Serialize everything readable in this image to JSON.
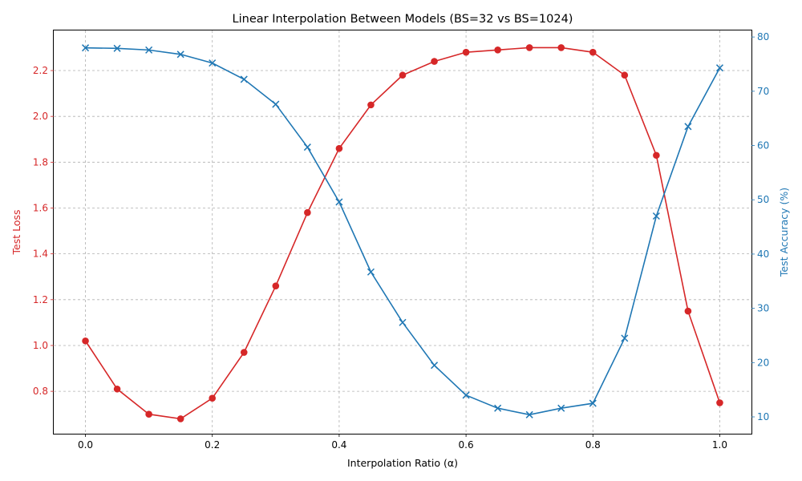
{
  "chart_data": {
    "type": "line",
    "title": "Linear Interpolation Between Models (BS=32 vs BS=1024)",
    "xlabel": "Interpolation Ratio (α)",
    "ylabel_left": "Test Loss",
    "ylabel_right": "Test Accuracy (%)",
    "x": [
      0.0,
      0.05,
      0.1,
      0.15,
      0.2,
      0.25,
      0.3,
      0.35,
      0.4,
      0.45,
      0.5,
      0.55,
      0.6,
      0.65,
      0.7,
      0.75,
      0.8,
      0.85,
      0.9,
      0.95,
      1.0
    ],
    "xlim": [
      -0.05,
      1.05
    ],
    "xticks": [
      "0.0",
      "0.2",
      "0.4",
      "0.6",
      "0.8",
      "1.0"
    ],
    "ylim_left": [
      0.615,
      2.375
    ],
    "yticks_left": [
      "0.8",
      "1.0",
      "1.2",
      "1.4",
      "1.6",
      "1.8",
      "2.0",
      "2.2"
    ],
    "ylim_right": [
      6.9,
      81.2
    ],
    "yticks_right": [
      "10",
      "20",
      "30",
      "40",
      "50",
      "60",
      "70",
      "80"
    ],
    "grid": true,
    "series": [
      {
        "axis": "left",
        "color": "#d62728",
        "marker": "circle",
        "values": [
          1.02,
          0.81,
          0.7,
          0.68,
          0.77,
          0.97,
          1.26,
          1.58,
          1.86,
          2.05,
          2.18,
          2.24,
          2.28,
          2.29,
          2.3,
          2.3,
          2.28,
          2.18,
          1.83,
          1.15,
          0.75
        ]
      },
      {
        "axis": "right",
        "color": "#1f77b4",
        "marker": "x",
        "values": [
          78.0,
          77.9,
          77.6,
          76.8,
          75.2,
          72.2,
          67.6,
          59.7,
          49.6,
          36.7,
          27.4,
          19.5,
          14.0,
          11.6,
          10.4,
          11.6,
          12.5,
          24.5,
          47.0,
          63.5,
          74.3
        ]
      }
    ]
  }
}
